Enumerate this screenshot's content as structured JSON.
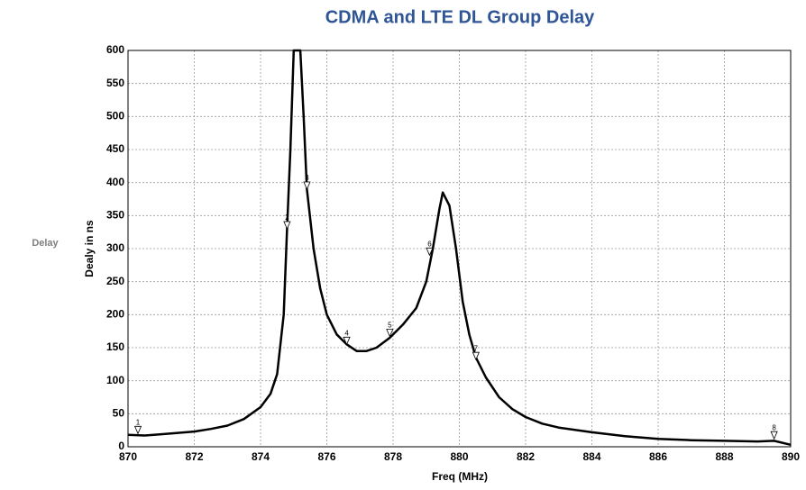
{
  "side_label": "Delay",
  "chart_data": {
    "type": "line",
    "title": "CDMA and LTE DL Group Delay",
    "xlabel": "Freq (MHz)",
    "ylabel": "Dealy in ns",
    "color": "#000000",
    "grid": true,
    "xlim": [
      870,
      890
    ],
    "ylim": [
      0,
      600
    ],
    "xticks": [
      870,
      872,
      874,
      876,
      878,
      880,
      882,
      884,
      886,
      888,
      890
    ],
    "yticks": [
      0,
      50,
      100,
      150,
      200,
      250,
      300,
      350,
      400,
      450,
      500,
      550,
      600
    ],
    "x": [
      870,
      870.5,
      871,
      871.5,
      872,
      872.5,
      873,
      873.5,
      874,
      874.3,
      874.5,
      874.7,
      874.8,
      874.9,
      875.0,
      875.2,
      875.3,
      875.4,
      875.6,
      875.8,
      876,
      876.3,
      876.6,
      876.9,
      877.2,
      877.5,
      877.9,
      878.3,
      878.7,
      879.0,
      879.2,
      879.4,
      879.5,
      879.7,
      879.9,
      880.1,
      880.3,
      880.5,
      880.8,
      881.2,
      881.6,
      882,
      882.5,
      883,
      884,
      885,
      886,
      887,
      888,
      889,
      889.5,
      890
    ],
    "values": [
      18,
      17,
      19,
      21,
      23,
      27,
      32,
      42,
      60,
      80,
      110,
      200,
      330,
      450,
      600,
      600,
      500,
      390,
      300,
      240,
      200,
      170,
      155,
      145,
      145,
      150,
      165,
      185,
      210,
      250,
      300,
      360,
      385,
      365,
      300,
      220,
      170,
      135,
      105,
      75,
      57,
      45,
      35,
      29,
      22,
      16,
      12,
      10,
      9,
      8,
      9,
      3
    ],
    "markers": [
      {
        "label": "1",
        "x": 870.3,
        "y": 20
      },
      {
        "label": "2",
        "x": 874.8,
        "y": 330
      },
      {
        "label": "3",
        "x": 875.4,
        "y": 390
      },
      {
        "label": "4",
        "x": 876.6,
        "y": 155
      },
      {
        "label": "5",
        "x": 877.9,
        "y": 167
      },
      {
        "label": "6",
        "x": 879.1,
        "y": 290
      },
      {
        "label": "7",
        "x": 880.5,
        "y": 132
      },
      {
        "label": "8",
        "x": 889.5,
        "y": 12
      }
    ]
  }
}
